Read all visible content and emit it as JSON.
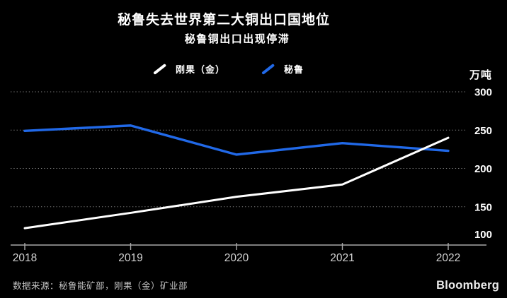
{
  "header": {
    "title": "秘鲁失去世界第二大铜出口国地位",
    "subtitle": "秘鲁铜出口出现停滞"
  },
  "footer": {
    "source": "数据来源：秘鲁能矿部，刚果（金）矿业部",
    "logo": "Bloomberg"
  },
  "chart_data": {
    "type": "line",
    "title": "秘鲁失去世界第二大铜出口国地位",
    "subtitle": "秘鲁铜出口出现停滞",
    "x": [
      2018,
      2019,
      2020,
      2021,
      2022
    ],
    "series": [
      {
        "name": "刚果（金）",
        "color": "#ffffff",
        "values": [
          122,
          142,
          163,
          179,
          240
        ]
      },
      {
        "name": "秘鲁",
        "color": "#2169e8",
        "values": [
          249,
          256,
          218,
          233,
          223
        ]
      }
    ],
    "ylim": [
      100,
      300
    ],
    "yticks": [
      100,
      150,
      200,
      250,
      300
    ],
    "unit_label": "万吨",
    "xlabel": "",
    "ylabel": "",
    "grid": "dotted-horizontal",
    "legend_position": "top-center",
    "background_color": "#000000"
  }
}
